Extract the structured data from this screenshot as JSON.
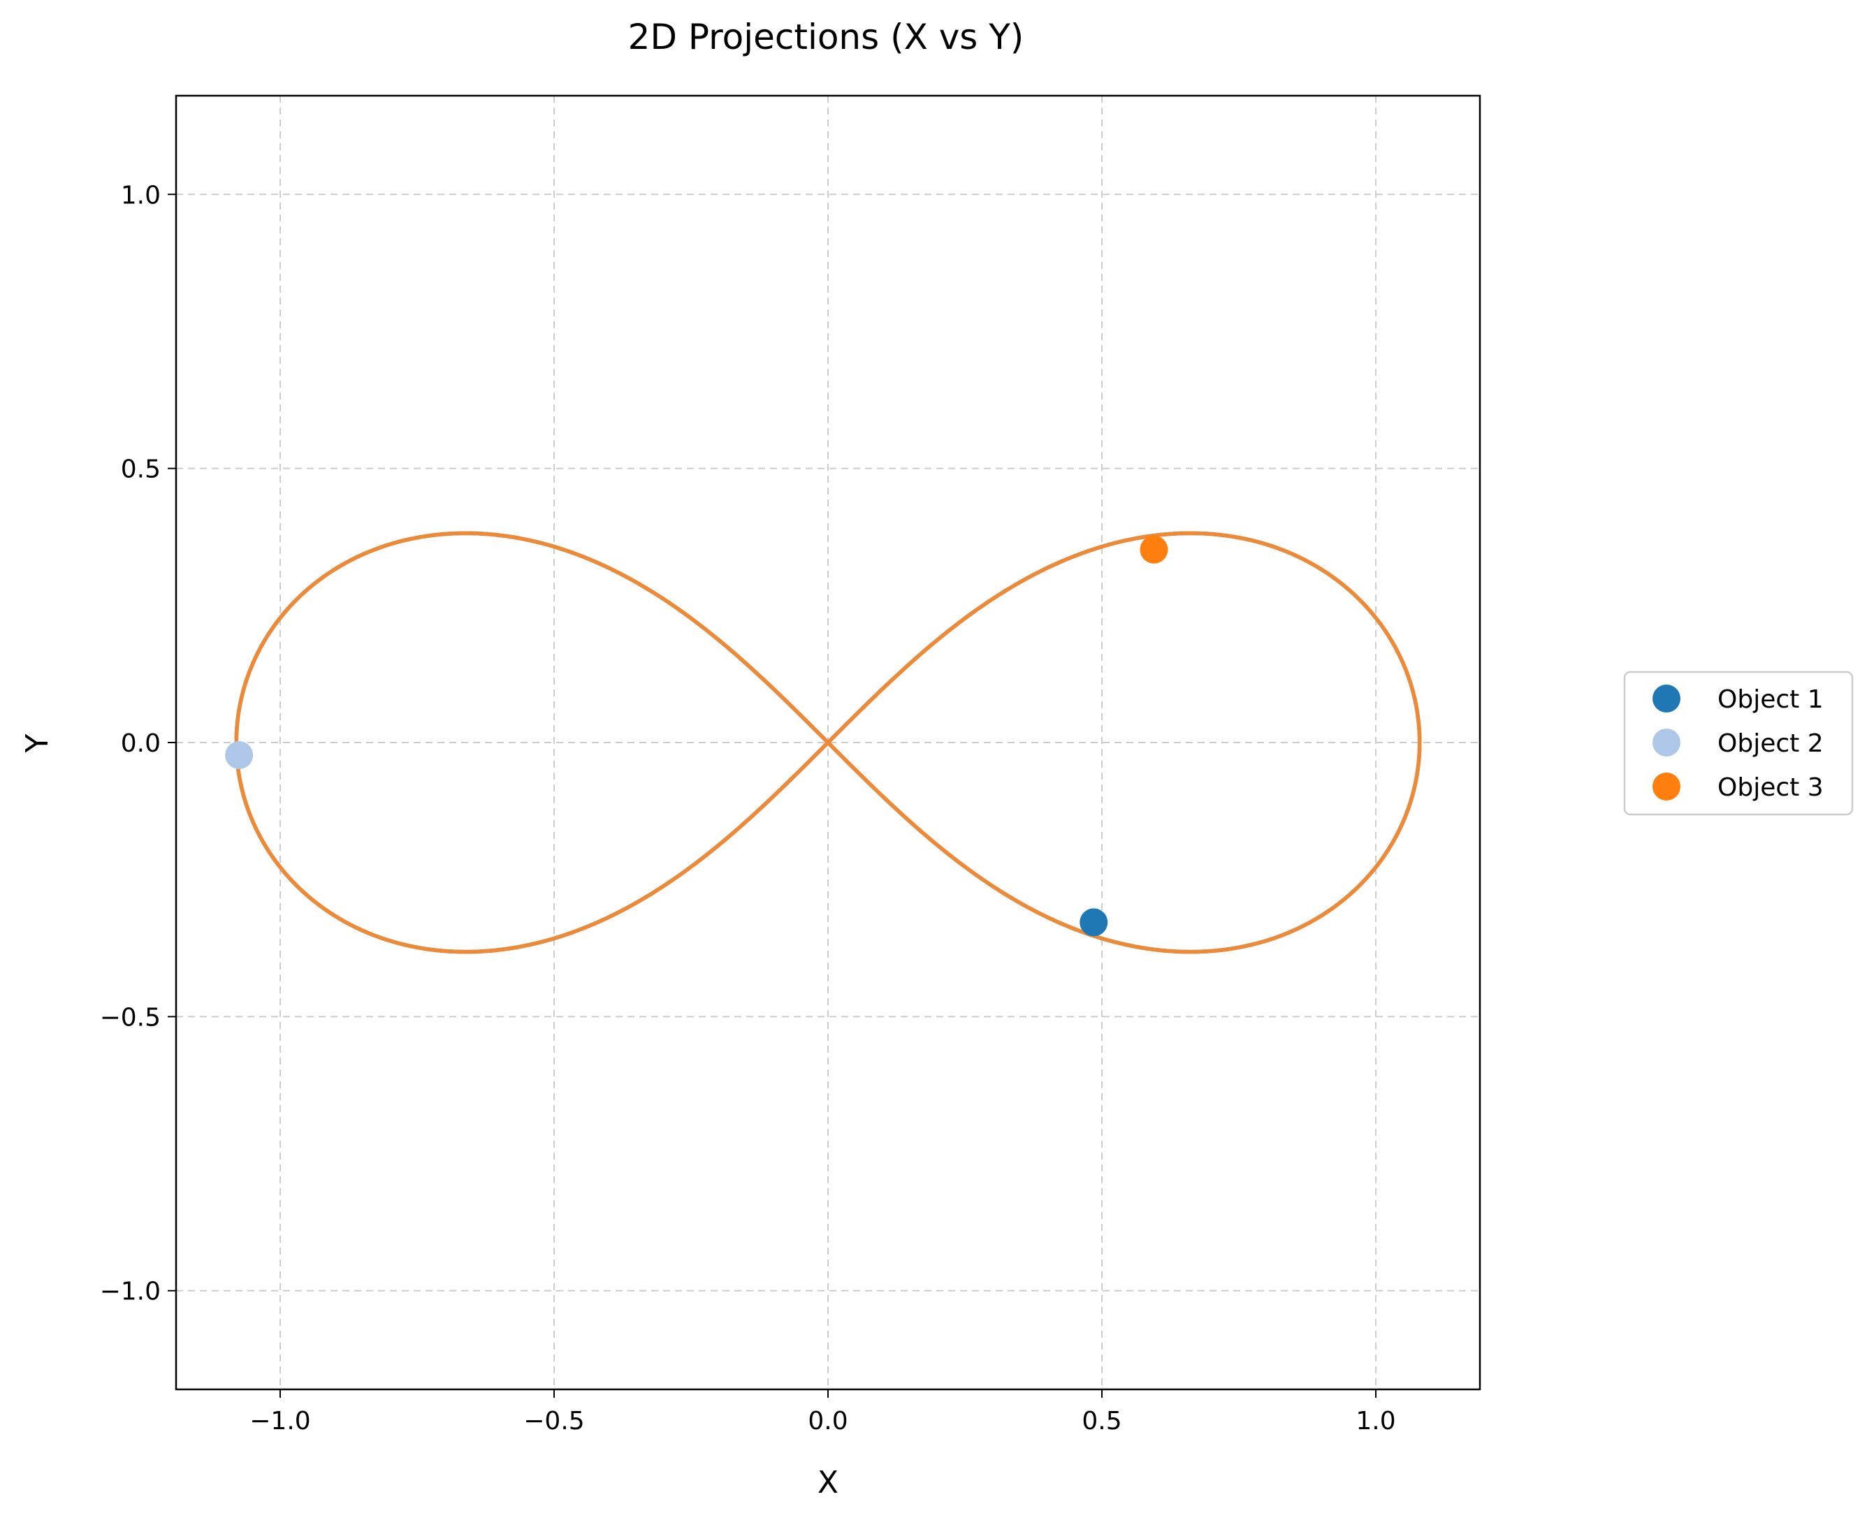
{
  "chart_data": {
    "type": "line",
    "title": "2D Projections (X vs Y)",
    "xlabel": "X",
    "ylabel": "Y",
    "xlim": [
      -1.19,
      1.19
    ],
    "ylim": [
      -1.18,
      1.18
    ],
    "xticks": [
      {
        "value": -1.0,
        "label": "−1.0"
      },
      {
        "value": -0.5,
        "label": "−0.5"
      },
      {
        "value": 0.0,
        "label": "0.0"
      },
      {
        "value": 0.5,
        "label": "0.5"
      },
      {
        "value": 1.0,
        "label": "1.0"
      }
    ],
    "yticks": [
      {
        "value": -1.0,
        "label": "−1.0"
      },
      {
        "value": -0.5,
        "label": "−0.5"
      },
      {
        "value": 0.0,
        "label": "0.0"
      },
      {
        "value": 0.5,
        "label": "0.5"
      },
      {
        "value": 1.0,
        "label": "1.0"
      }
    ],
    "grid": true,
    "legend_position": "right",
    "curve": {
      "shape": "lemniscate of Bernoulli",
      "parameter_a": 1.08,
      "extent": {
        "x": [
          -1.08,
          1.08
        ],
        "y": [
          -0.355,
          0.355
        ]
      },
      "points": [
        {
          "x": 0.0,
          "y": 0.0
        },
        {
          "x": 0.3,
          "y": 0.19
        },
        {
          "x": 0.5,
          "y": 0.3
        },
        {
          "x": 0.66,
          "y": 0.355
        },
        {
          "x": 0.9,
          "y": 0.3
        },
        {
          "x": 1.08,
          "y": 0.0
        },
        {
          "x": 0.9,
          "y": -0.3
        },
        {
          "x": 0.66,
          "y": -0.355
        },
        {
          "x": 0.5,
          "y": -0.3
        },
        {
          "x": 0.3,
          "y": -0.19
        },
        {
          "x": -0.3,
          "y": 0.19
        },
        {
          "x": -0.66,
          "y": 0.355
        },
        {
          "x": -1.08,
          "y": 0.0
        },
        {
          "x": -0.66,
          "y": -0.355
        },
        {
          "x": -0.3,
          "y": -0.19
        }
      ]
    },
    "series": [
      {
        "name": "Object 1",
        "color": "#1f77b4",
        "point": {
          "x": 0.485,
          "y": -0.328
        }
      },
      {
        "name": "Object 2",
        "color": "#aec7e8",
        "point": {
          "x": -1.075,
          "y": -0.023
        }
      },
      {
        "name": "Object 3",
        "color": "#ff7f0e",
        "point": {
          "x": 0.595,
          "y": 0.352
        }
      }
    ],
    "trail_colors": [
      "#1f77b4",
      "#aec7e8",
      "#ff7f0e"
    ],
    "trail_top_color": "#ee8a37"
  }
}
